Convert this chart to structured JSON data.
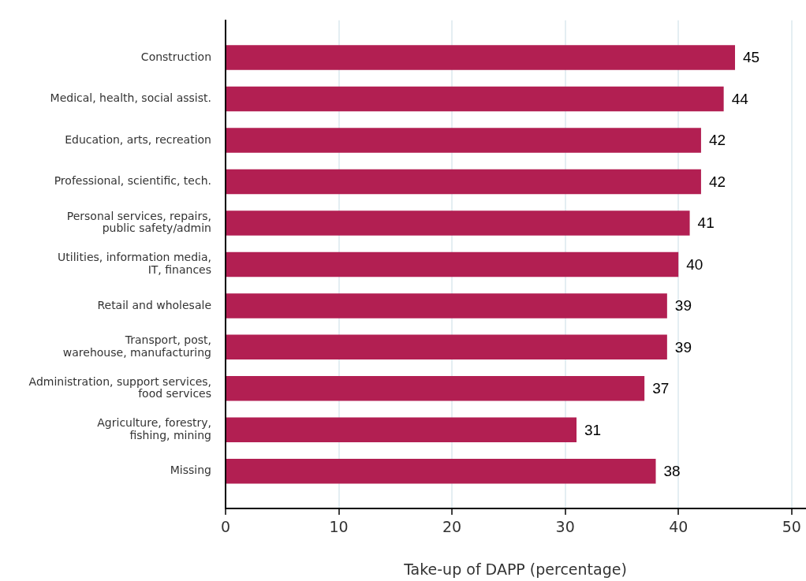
{
  "chart_data": {
    "type": "bar",
    "orientation": "horizontal",
    "categories": [
      "Construction",
      "Medical, health, social assist.",
      "Education, arts, recreation",
      "Professional, scientific, tech.",
      "Personal services, repairs,\npublic safety/admin",
      "Utilities, information media,\nIT, finances",
      "Retail and wholesale",
      "Transport, post,\nwarehouse, manufacturing",
      "Administration, support services,\nfood services",
      "Agriculture, forestry,\nfishing, mining",
      "Missing"
    ],
    "values": [
      45,
      44,
      42,
      42,
      41,
      40,
      39,
      39,
      37,
      31,
      38
    ],
    "color": "#b21f52",
    "xlabel": "Take-up of DAPP (percentage)",
    "xlim": [
      0,
      51.2
    ],
    "xticks": [
      0,
      10,
      20,
      30,
      40,
      50
    ],
    "grid": "x",
    "legend": false,
    "data_labels": true
  }
}
